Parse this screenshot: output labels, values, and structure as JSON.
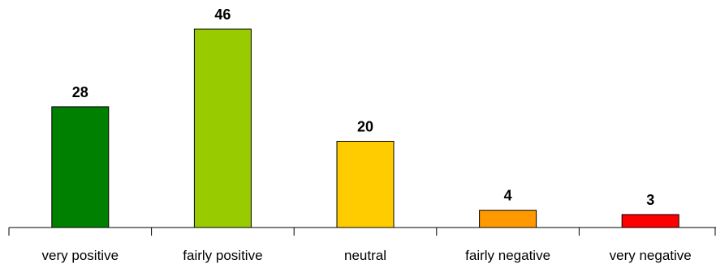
{
  "chart_data": {
    "type": "bar",
    "categories": [
      "very positive",
      "fairly positive",
      "neutral",
      "fairly negative",
      "very negative"
    ],
    "values": [
      28,
      46,
      20,
      4,
      3
    ],
    "colors": [
      "#008000",
      "#99cc00",
      "#ffcc00",
      "#ff9900",
      "#ff0000"
    ],
    "data_labels": [
      "28",
      "46",
      "20",
      "4",
      "3"
    ],
    "title": "",
    "xlabel": "",
    "ylabel": "",
    "ylim": [
      0,
      46
    ],
    "grid": false,
    "legend": "none"
  }
}
